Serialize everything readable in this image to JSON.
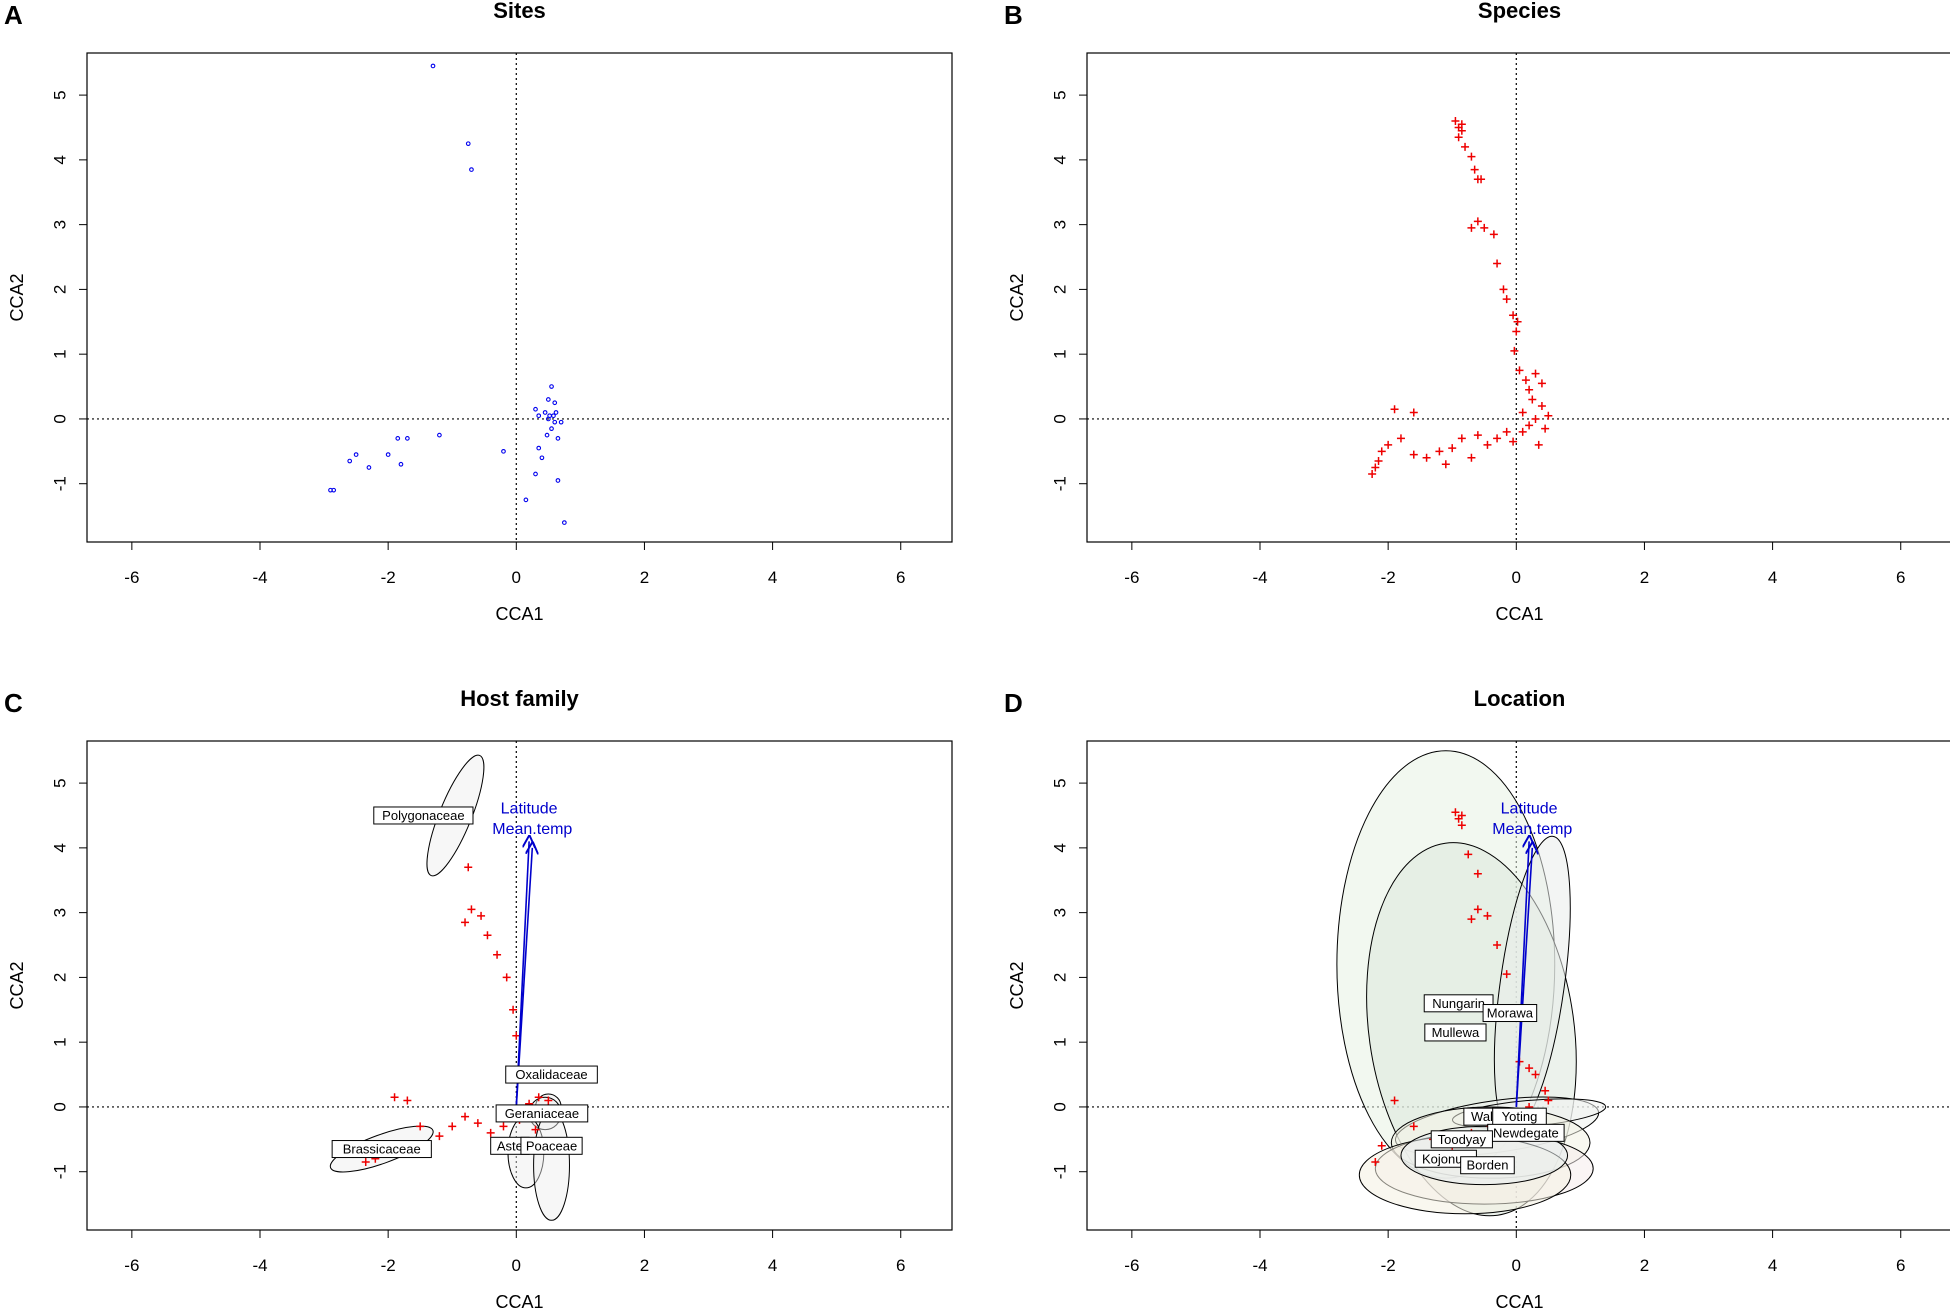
{
  "figure": {
    "colors": {
      "sites": "#0000ee",
      "species": "#ee0000",
      "vectors": "#0000cc",
      "axes": "#000000"
    }
  },
  "chart_data": [
    {
      "panel": "A",
      "type": "scatter",
      "title": "Sites",
      "xlabel": "CCA1",
      "ylabel": "CCA2",
      "xlim": [
        -6.7,
        6.8
      ],
      "ylim": [
        -1.9,
        5.65
      ],
      "xticks": [
        -6,
        -4,
        -2,
        0,
        2,
        4,
        6
      ],
      "yticks": [
        -1,
        0,
        1,
        2,
        3,
        4,
        5
      ],
      "reference_lines": {
        "x": 0,
        "y": 0,
        "style": "dotted"
      },
      "series": [
        {
          "name": "Sites",
          "marker": "circle",
          "color": "#0000ee",
          "points": [
            [
              -1.3,
              5.45
            ],
            [
              -0.75,
              4.25
            ],
            [
              -0.7,
              3.85
            ],
            [
              -2.9,
              -1.1
            ],
            [
              -2.85,
              -1.1
            ],
            [
              -2.6,
              -0.65
            ],
            [
              -2.5,
              -0.55
            ],
            [
              -2.3,
              -0.75
            ],
            [
              -2.0,
              -0.55
            ],
            [
              -1.85,
              -0.3
            ],
            [
              -1.8,
              -0.7
            ],
            [
              -1.7,
              -0.3
            ],
            [
              -1.2,
              -0.25
            ],
            [
              -0.2,
              -0.5
            ],
            [
              0.15,
              -1.25
            ],
            [
              0.3,
              -0.85
            ],
            [
              0.35,
              -0.45
            ],
            [
              0.4,
              -0.6
            ],
            [
              0.45,
              0.1
            ],
            [
              0.48,
              -0.25
            ],
            [
              0.5,
              0.0
            ],
            [
              0.5,
              0.3
            ],
            [
              0.52,
              0.05
            ],
            [
              0.55,
              0.5
            ],
            [
              0.55,
              -0.15
            ],
            [
              0.58,
              0.05
            ],
            [
              0.6,
              0.25
            ],
            [
              0.6,
              -0.05
            ],
            [
              0.62,
              0.1
            ],
            [
              0.65,
              -0.3
            ],
            [
              0.7,
              -0.05
            ],
            [
              0.3,
              0.15
            ],
            [
              0.35,
              0.05
            ],
            [
              0.75,
              -1.6
            ],
            [
              0.65,
              -0.95
            ]
          ]
        }
      ]
    },
    {
      "panel": "B",
      "type": "scatter",
      "title": "Species",
      "xlabel": "CCA1",
      "ylabel": "CCA2",
      "xlim": [
        -6.7,
        6.8
      ],
      "ylim": [
        -1.9,
        5.65
      ],
      "xticks": [
        -6,
        -4,
        -2,
        0,
        2,
        4,
        6
      ],
      "yticks": [
        -1,
        0,
        1,
        2,
        3,
        4,
        5
      ],
      "reference_lines": {
        "x": 0,
        "y": 0,
        "style": "dotted"
      },
      "series": [
        {
          "name": "Species",
          "marker": "plus",
          "color": "#ee0000",
          "points": [
            [
              -0.95,
              4.6
            ],
            [
              -0.9,
              4.5
            ],
            [
              -0.85,
              4.55
            ],
            [
              -0.9,
              4.35
            ],
            [
              -0.85,
              4.45
            ],
            [
              -0.8,
              4.2
            ],
            [
              -0.7,
              4.05
            ],
            [
              -0.65,
              3.85
            ],
            [
              -0.6,
              3.7
            ],
            [
              -0.55,
              3.7
            ],
            [
              -0.6,
              3.05
            ],
            [
              -0.7,
              2.95
            ],
            [
              -0.5,
              2.95
            ],
            [
              -0.35,
              2.85
            ],
            [
              -0.3,
              2.4
            ],
            [
              -0.2,
              2.0
            ],
            [
              -0.15,
              1.85
            ],
            [
              -0.05,
              1.6
            ],
            [
              0.0,
              1.35
            ],
            [
              0.02,
              1.5
            ],
            [
              -0.03,
              1.05
            ],
            [
              0.05,
              0.75
            ],
            [
              0.3,
              0.7
            ],
            [
              0.15,
              0.6
            ],
            [
              0.4,
              0.55
            ],
            [
              0.2,
              0.45
            ],
            [
              -2.25,
              -0.85
            ],
            [
              -2.2,
              -0.75
            ],
            [
              -2.15,
              -0.65
            ],
            [
              -2.1,
              -0.5
            ],
            [
              -2.0,
              -0.4
            ],
            [
              -1.9,
              0.15
            ],
            [
              -1.8,
              -0.3
            ],
            [
              -1.6,
              0.1
            ],
            [
              -1.6,
              -0.55
            ],
            [
              -1.4,
              -0.6
            ],
            [
              -1.2,
              -0.5
            ],
            [
              -1.1,
              -0.7
            ],
            [
              -1.0,
              -0.45
            ],
            [
              -0.85,
              -0.3
            ],
            [
              -0.7,
              -0.6
            ],
            [
              -0.6,
              -0.25
            ],
            [
              -0.45,
              -0.4
            ],
            [
              -0.3,
              -0.3
            ],
            [
              -0.15,
              -0.2
            ],
            [
              -0.05,
              -0.35
            ],
            [
              0.1,
              -0.2
            ],
            [
              0.2,
              -0.1
            ],
            [
              0.3,
              0.0
            ],
            [
              0.35,
              -0.4
            ],
            [
              0.4,
              0.2
            ],
            [
              0.45,
              -0.15
            ],
            [
              0.5,
              0.05
            ],
            [
              0.25,
              0.3
            ],
            [
              0.1,
              0.1
            ]
          ]
        }
      ]
    },
    {
      "panel": "C",
      "type": "scatter",
      "title": "Host family",
      "xlabel": "CCA1",
      "ylabel": "CCA2",
      "xlim": [
        -6.7,
        6.8
      ],
      "ylim": [
        -1.9,
        5.65
      ],
      "xticks": [
        -6,
        -4,
        -2,
        0,
        2,
        4,
        6
      ],
      "yticks": [
        -1,
        0,
        1,
        2,
        3,
        4,
        5
      ],
      "reference_lines": {
        "x": 0,
        "y": 0,
        "style": "dotted"
      },
      "vectors": [
        {
          "label": "Latitude",
          "end": [
            0.2,
            4.1
          ]
        },
        {
          "label": "Mean.temp",
          "end": [
            0.25,
            4.0
          ]
        }
      ],
      "groups": [
        {
          "label": "Polygonaceae",
          "label_at": [
            -1.45,
            4.5
          ],
          "ellipse_center": [
            -0.95,
            4.5
          ],
          "rx": 0.25,
          "ry": 1.0,
          "angle_deg": 22
        },
        {
          "label": "Brassicaceae",
          "label_at": [
            -2.1,
            -0.65
          ],
          "ellipse_center": [
            -2.1,
            -0.65
          ],
          "rx": 0.85,
          "ry": 0.22,
          "angle_deg": -20
        },
        {
          "label": "Oxalidaceae",
          "label_at": [
            0.55,
            0.5
          ],
          "ellipse_center": [
            0.5,
            0.0
          ],
          "rx": 0.2,
          "ry": 0.2,
          "angle_deg": 0
        },
        {
          "label": "Geraniaceae",
          "label_at": [
            0.4,
            -0.1
          ],
          "ellipse_center": [
            0.45,
            -0.1
          ],
          "rx": 0.25,
          "ry": 0.25,
          "angle_deg": 0
        },
        {
          "label": "Aste",
          "label_at": [
            -0.1,
            -0.6
          ],
          "ellipse_center": [
            0.15,
            -0.7
          ],
          "rx": 0.28,
          "ry": 0.55,
          "angle_deg": 0
        },
        {
          "label": "Poaceae",
          "label_at": [
            0.55,
            -0.6
          ],
          "ellipse_center": [
            0.55,
            -0.9
          ],
          "rx": 0.28,
          "ry": 0.85,
          "angle_deg": 0
        }
      ],
      "series": [
        {
          "name": "Species",
          "marker": "plus",
          "color": "#ee0000",
          "points": [
            [
              -0.75,
              3.7
            ],
            [
              -0.7,
              3.05
            ],
            [
              -0.8,
              2.85
            ],
            [
              -0.55,
              2.95
            ],
            [
              -0.45,
              2.65
            ],
            [
              -0.3,
              2.35
            ],
            [
              -0.15,
              2.0
            ],
            [
              -0.05,
              1.5
            ],
            [
              0.0,
              1.1
            ],
            [
              -1.9,
              0.15
            ],
            [
              -1.7,
              0.1
            ],
            [
              -1.5,
              -0.3
            ],
            [
              -1.2,
              -0.45
            ],
            [
              -1.0,
              -0.3
            ],
            [
              -0.8,
              -0.15
            ],
            [
              -0.6,
              -0.25
            ],
            [
              -0.4,
              -0.4
            ],
            [
              -0.2,
              -0.3
            ],
            [
              0.05,
              -0.2
            ],
            [
              0.2,
              0.05
            ],
            [
              0.35,
              0.15
            ],
            [
              0.45,
              -0.05
            ],
            [
              0.5,
              0.1
            ],
            [
              0.3,
              -0.35
            ],
            [
              -2.2,
              -0.8
            ],
            [
              -2.35,
              -0.85
            ]
          ]
        }
      ]
    },
    {
      "panel": "D",
      "type": "scatter",
      "title": "Location",
      "xlabel": "CCA1",
      "ylabel": "CCA2",
      "xlim": [
        -6.7,
        6.8
      ],
      "ylim": [
        -1.9,
        5.65
      ],
      "xticks": [
        -6,
        -4,
        -2,
        0,
        2,
        4,
        6
      ],
      "yticks": [
        -1,
        0,
        1,
        2,
        3,
        4,
        5
      ],
      "reference_lines": {
        "x": 0,
        "y": 0,
        "style": "dotted"
      },
      "vectors": [
        {
          "label": "Latitude",
          "end": [
            0.2,
            4.1
          ]
        },
        {
          "label": "Mean.temp",
          "end": [
            0.25,
            4.0
          ]
        }
      ],
      "groups": [
        {
          "label": "Nungarin",
          "label_at": [
            -0.9,
            1.6
          ],
          "ellipse_center": [
            -1.1,
            2.2
          ],
          "rx": 1.7,
          "ry": 3.3,
          "angle_deg": 0,
          "fill": "#e8f2e3"
        },
        {
          "label": "Mullewa",
          "label_at": [
            -0.95,
            1.15
          ],
          "ellipse_center": [
            -0.7,
            1.2
          ],
          "rx": 1.6,
          "ry": 2.9,
          "angle_deg": -8,
          "fill": "#dde7dd"
        },
        {
          "label": "Morawa",
          "label_at": [
            -0.1,
            1.45
          ],
          "ellipse_center": [
            0.25,
            1.9
          ],
          "rx": 0.5,
          "ry": 2.3,
          "angle_deg": 8,
          "fill": "#e9edeb"
        },
        {
          "label": "Walebi",
          "label_at": [
            -0.4,
            -0.15
          ],
          "ellipse_center": [
            -0.3,
            -0.3
          ],
          "rx": 1.6,
          "ry": 0.4,
          "angle_deg": -8,
          "fill": "#eef2ee"
        },
        {
          "label": "Yoting",
          "label_at": [
            0.05,
            -0.15
          ],
          "ellipse_center": [
            0.2,
            -0.1
          ],
          "rx": 1.2,
          "ry": 0.2,
          "angle_deg": -5,
          "fill": "#f1f3f1"
        },
        {
          "label": "Newdegate",
          "label_at": [
            0.15,
            -0.4
          ],
          "ellipse_center": [
            -0.4,
            -0.55
          ],
          "rx": 1.55,
          "ry": 0.55,
          "angle_deg": 0,
          "fill": "#f2f2e4"
        },
        {
          "label": "Toodyay",
          "label_at": [
            -0.85,
            -0.5
          ],
          "ellipse_center": [
            -0.5,
            -0.95
          ],
          "rx": 1.7,
          "ry": 0.55,
          "angle_deg": 0,
          "fill": "#f5ecec"
        },
        {
          "label": "Kojonup",
          "label_at": [
            -1.1,
            -0.8
          ],
          "ellipse_center": [
            -0.8,
            -1.05
          ],
          "rx": 1.65,
          "ry": 0.6,
          "angle_deg": 0,
          "fill": "#f4f1e2"
        },
        {
          "label": "Borden",
          "label_at": [
            -0.45,
            -0.9
          ],
          "ellipse_center": [
            -0.5,
            -0.75
          ],
          "rx": 1.3,
          "ry": 0.45,
          "angle_deg": 0,
          "fill": "#e7eef0"
        }
      ],
      "series": [
        {
          "name": "Species",
          "marker": "plus",
          "color": "#ee0000",
          "points": [
            [
              -0.95,
              4.55
            ],
            [
              -0.9,
              4.45
            ],
            [
              -0.85,
              4.5
            ],
            [
              -0.85,
              4.35
            ],
            [
              -0.75,
              3.9
            ],
            [
              -0.6,
              3.6
            ],
            [
              -0.6,
              3.05
            ],
            [
              -0.7,
              2.9
            ],
            [
              -0.45,
              2.95
            ],
            [
              -0.3,
              2.5
            ],
            [
              -0.15,
              2.05
            ],
            [
              0.05,
              0.7
            ],
            [
              0.2,
              0.6
            ],
            [
              0.3,
              0.5
            ],
            [
              0.45,
              0.25
            ],
            [
              0.5,
              0.1
            ],
            [
              -2.2,
              -0.85
            ],
            [
              -2.1,
              -0.6
            ],
            [
              -1.9,
              0.1
            ],
            [
              -1.6,
              -0.3
            ],
            [
              -1.3,
              -0.5
            ],
            [
              -1.0,
              -0.6
            ],
            [
              -0.7,
              -0.4
            ],
            [
              -0.4,
              -0.3
            ],
            [
              -0.1,
              -0.2
            ],
            [
              0.2,
              0.0
            ],
            [
              0.35,
              -0.1
            ]
          ]
        }
      ]
    }
  ]
}
